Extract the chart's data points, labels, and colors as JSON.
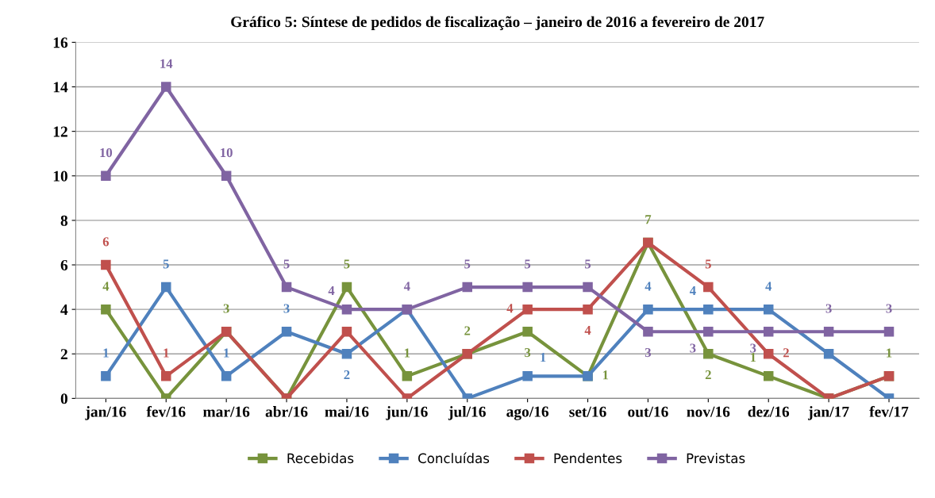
{
  "chart_data": {
    "type": "line",
    "title": "Gráfico 5: Síntese de pedidos de fiscalização – janeiro de 2016 a fevereiro de 2017",
    "categories": [
      "jan/16",
      "fev/16",
      "mar/16",
      "abr/16",
      "mai/16",
      "jun/16",
      "jul/16",
      "ago/16",
      "set/16",
      "out/16",
      "nov/16",
      "dez/16",
      "jan/17",
      "fev/17"
    ],
    "series": [
      {
        "name": "Recebidas",
        "color": "#77933c",
        "values": [
          4,
          0,
          3,
          0,
          5,
          1,
          2,
          3,
          1,
          7,
          2,
          1,
          0,
          1
        ],
        "value_labels": [
          "4",
          null,
          "3",
          null,
          "5",
          "1",
          "2",
          "3",
          "1",
          "7",
          "2",
          "1",
          null,
          "1"
        ]
      },
      {
        "name": "Concluídas",
        "color": "#4f81bd",
        "values": [
          1,
          5,
          1,
          3,
          2,
          4,
          0,
          1,
          1,
          4,
          4,
          4,
          2,
          0
        ],
        "value_labels": [
          "1",
          "5",
          "1",
          "3",
          "2",
          null,
          null,
          "1",
          null,
          "4",
          "4",
          "4",
          null,
          null
        ]
      },
      {
        "name": "Pendentes",
        "color": "#c0504d",
        "values": [
          6,
          1,
          3,
          0,
          3,
          0,
          2,
          4,
          4,
          7,
          5,
          2,
          0,
          1
        ],
        "value_labels": [
          "6",
          "1",
          null,
          null,
          null,
          null,
          null,
          "4",
          "4",
          null,
          "5",
          "2",
          null,
          null
        ]
      },
      {
        "name": "Previstas",
        "color": "#8064a2",
        "values": [
          10,
          14,
          10,
          5,
          4,
          4,
          5,
          5,
          5,
          3,
          3,
          3,
          3,
          3
        ],
        "value_labels": [
          "10",
          "14",
          "10",
          "5",
          "4",
          "4",
          "5",
          "5",
          "5",
          "3",
          "3",
          "3",
          "3",
          "3"
        ]
      }
    ],
    "ylim": [
      0,
      16
    ],
    "yticks": [
      0,
      2,
      4,
      6,
      8,
      10,
      12,
      14,
      16
    ],
    "grid": "y",
    "legend": "bottom",
    "marker": "square",
    "line_style": "solid"
  }
}
